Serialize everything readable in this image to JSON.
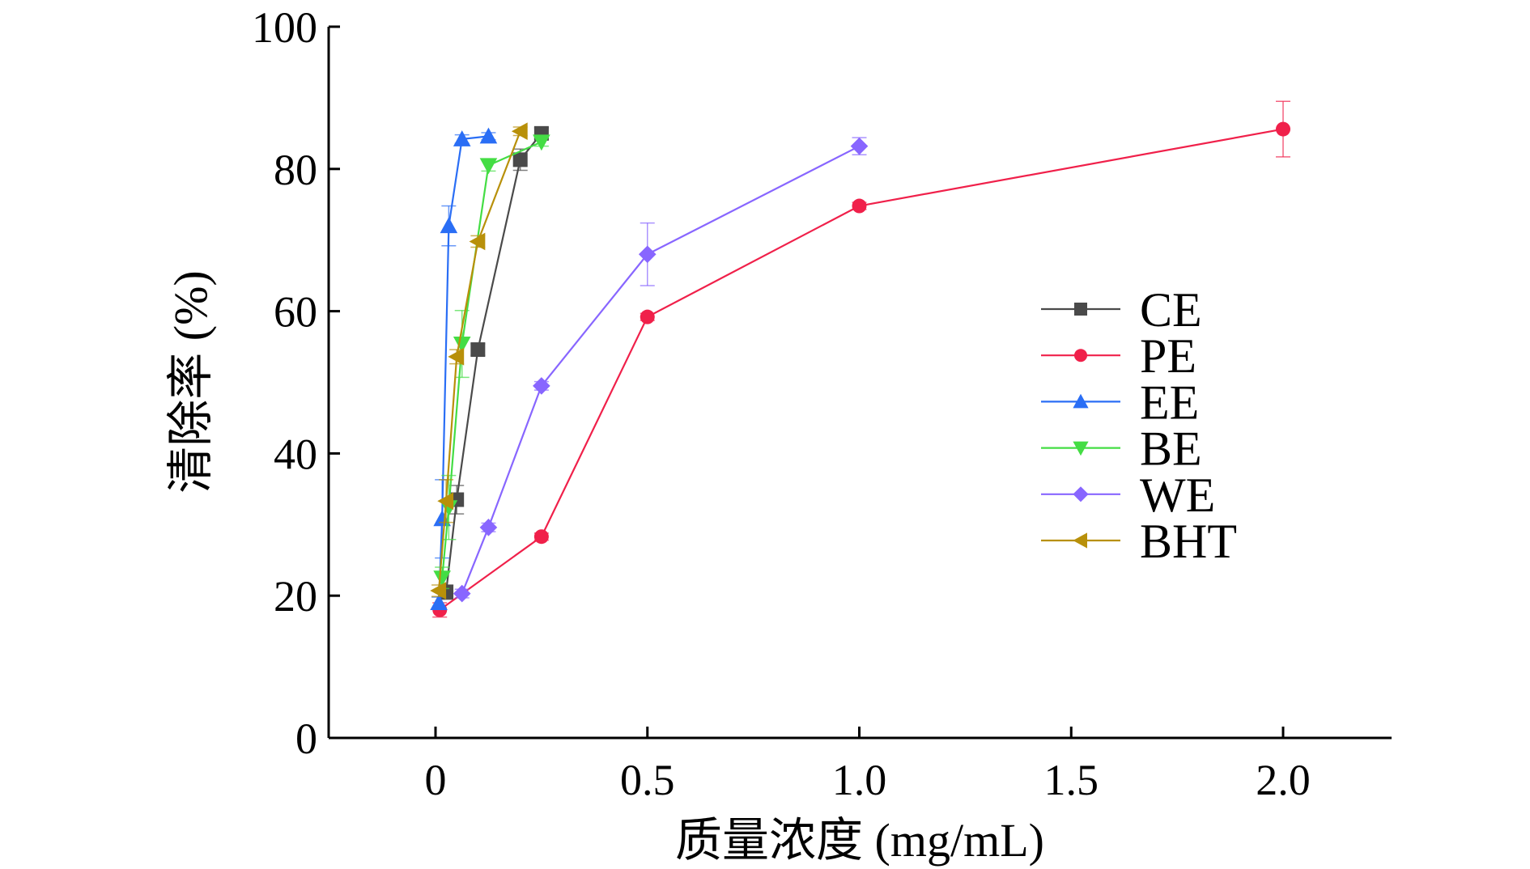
{
  "chart_data": {
    "type": "line",
    "title": "",
    "xlabel": "质量浓度 (mg/mL)",
    "ylabel": "清除率 (%)",
    "xlim": [
      -0.25,
      2.25
    ],
    "ylim": [
      0,
      100
    ],
    "xticks": [
      0,
      0.5,
      1.0,
      1.5,
      2.0
    ],
    "xtick_labels": [
      "0",
      "0.5",
      "1.0",
      "1.5",
      "2.0"
    ],
    "yticks": [
      0,
      20,
      40,
      60,
      80,
      100
    ],
    "ytick_labels": [
      "0",
      "20",
      "40",
      "60",
      "80",
      "100"
    ],
    "grid": false,
    "legend_position": "right",
    "series": [
      {
        "name": "CE",
        "color": "#4a4a4a",
        "marker": "square",
        "x": [
          0.025,
          0.05,
          0.1,
          0.2,
          0.25
        ],
        "y": [
          20.5,
          33.5,
          54.6,
          81.3,
          85.0
        ],
        "err": [
          1.0,
          2.0,
          0.8,
          1.5,
          0.8
        ]
      },
      {
        "name": "PE",
        "color": "#f0204a",
        "marker": "circle",
        "x": [
          0.01,
          0.25,
          0.5,
          1.0,
          2.0
        ],
        "y": [
          18.0,
          28.3,
          59.2,
          74.8,
          85.6
        ],
        "err": [
          1.0,
          0.5,
          0.5,
          0.5,
          3.9
        ]
      },
      {
        "name": "EE",
        "color": "#2a6ef5",
        "marker": "triangle-up",
        "x": [
          0.0078,
          0.0156,
          0.03125,
          0.0625,
          0.125
        ],
        "y": [
          19.0,
          30.8,
          72.0,
          84.2,
          84.6
        ],
        "err": [
          0.8,
          5.5,
          2.8,
          0.6,
          0.5
        ]
      },
      {
        "name": "BE",
        "color": "#44dd44",
        "marker": "triangle-down",
        "x": [
          0.0156,
          0.03125,
          0.0625,
          0.125,
          0.25
        ],
        "y": [
          22.5,
          32.4,
          55.4,
          80.5,
          83.8
        ],
        "err": [
          1.5,
          4.5,
          4.7,
          0.8,
          0.6
        ]
      },
      {
        "name": "WE",
        "color": "#8866ff",
        "marker": "diamond",
        "x": [
          0.0625,
          0.125,
          0.25,
          0.5,
          1.0
        ],
        "y": [
          20.3,
          29.6,
          49.5,
          68.0,
          83.2
        ],
        "err": [
          0.6,
          0.6,
          0.6,
          4.4,
          1.2
        ]
      },
      {
        "name": "BHT",
        "color": "#b8900a",
        "marker": "triangle-left",
        "x": [
          0.0078,
          0.025,
          0.05,
          0.1,
          0.2
        ],
        "y": [
          20.7,
          33.3,
          53.6,
          69.8,
          85.3
        ],
        "err": [
          0.8,
          3.0,
          1.0,
          0.8,
          0.6
        ]
      }
    ]
  }
}
